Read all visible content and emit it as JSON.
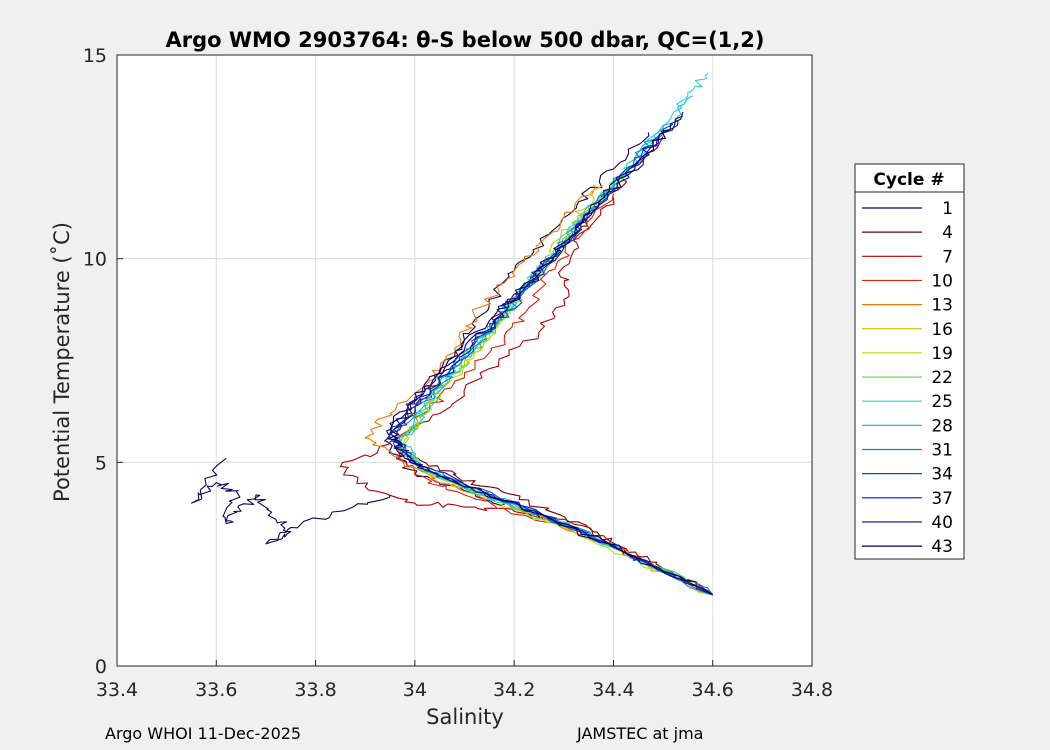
{
  "chart_data": {
    "type": "line",
    "title": "Argo WMO 2903764: θ-S below 500 dbar,  QC=(1,2)",
    "xlabel": "Salinity",
    "ylabel": "Potential Temperature (˚C)",
    "xlim": [
      33.4,
      34.8
    ],
    "ylim": [
      0,
      15
    ],
    "xticks": [
      "33.4",
      "33.6",
      "33.8",
      "34",
      "34.2",
      "34.4",
      "34.6",
      "34.8"
    ],
    "yticks": [
      "0",
      "5",
      "10",
      "15"
    ],
    "grid": true,
    "legend": {
      "title": "Cycle #",
      "placement": "right-outside",
      "entries": [
        {
          "label": "1",
          "color": "#15005a"
        },
        {
          "label": "4",
          "color": "#7a0000"
        },
        {
          "label": "7",
          "color": "#b00000"
        },
        {
          "label": "10",
          "color": "#e02000"
        },
        {
          "label": "13",
          "color": "#f07800"
        },
        {
          "label": "16",
          "color": "#e8c000"
        },
        {
          "label": "19",
          "color": "#b8e000"
        },
        {
          "label": "22",
          "color": "#50e040"
        },
        {
          "label": "25",
          "color": "#20d8c8"
        },
        {
          "label": "28",
          "color": "#10c0e0"
        },
        {
          "label": "31",
          "color": "#0090d0"
        },
        {
          "label": "34",
          "color": "#0050c0"
        },
        {
          "label": "37",
          "color": "#0018c0"
        },
        {
          "label": "40",
          "color": "#100090"
        },
        {
          "label": "43",
          "color": "#000060"
        }
      ]
    },
    "series": [
      {
        "name": "1",
        "points": [
          [
            34.6,
            1.75
          ],
          [
            34.5,
            2.3
          ],
          [
            34.4,
            2.9
          ],
          [
            34.3,
            3.5
          ],
          [
            34.2,
            3.9
          ],
          [
            34.1,
            4.3
          ],
          [
            34.0,
            4.7
          ],
          [
            33.95,
            5.3
          ],
          [
            33.95,
            5.8
          ],
          [
            34.0,
            6.5
          ],
          [
            34.05,
            7.2
          ],
          [
            34.1,
            8.0
          ],
          [
            34.15,
            8.9
          ],
          [
            34.2,
            9.7
          ],
          [
            34.27,
            10.6
          ],
          [
            34.33,
            11.4
          ],
          [
            34.4,
            12.2
          ],
          [
            34.47,
            13.1
          ]
        ]
      },
      {
        "name": "4",
        "points": [
          [
            34.6,
            1.75
          ],
          [
            34.5,
            2.4
          ],
          [
            34.42,
            2.9
          ],
          [
            34.35,
            3.4
          ],
          [
            34.25,
            3.9
          ],
          [
            34.15,
            4.4
          ],
          [
            34.05,
            4.8
          ],
          [
            33.98,
            5.2
          ],
          [
            33.96,
            5.6
          ],
          [
            34.0,
            6.3
          ],
          [
            34.05,
            7.0
          ],
          [
            34.12,
            7.9
          ],
          [
            34.18,
            8.8
          ],
          [
            34.24,
            9.6
          ],
          [
            34.3,
            10.4
          ],
          [
            34.37,
            11.3
          ],
          [
            34.43,
            12.1
          ],
          [
            34.5,
            13.0
          ]
        ]
      },
      {
        "name": "7",
        "points": [
          [
            34.6,
            1.75
          ],
          [
            34.48,
            2.5
          ],
          [
            34.38,
            3.2
          ],
          [
            34.3,
            3.6
          ],
          [
            34.2,
            3.8
          ],
          [
            34.1,
            3.9
          ],
          [
            34.0,
            4.0
          ],
          [
            33.9,
            4.4
          ],
          [
            33.85,
            4.9
          ],
          [
            33.95,
            5.5
          ],
          [
            34.05,
            6.2
          ],
          [
            34.15,
            7.3
          ],
          [
            34.25,
            8.2
          ],
          [
            34.3,
            9.0
          ],
          [
            34.3,
            9.8
          ],
          [
            34.33,
            10.6
          ],
          [
            34.4,
            11.5
          ]
        ]
      },
      {
        "name": "10",
        "points": [
          [
            34.6,
            1.75
          ],
          [
            34.46,
            2.6
          ],
          [
            34.35,
            3.2
          ],
          [
            34.22,
            3.7
          ],
          [
            34.1,
            4.2
          ],
          [
            34.0,
            4.7
          ],
          [
            33.96,
            5.4
          ],
          [
            34.03,
            6.3
          ],
          [
            34.1,
            7.2
          ],
          [
            34.18,
            8.0
          ],
          [
            34.23,
            8.8
          ],
          [
            34.27,
            9.7
          ],
          [
            34.33,
            10.5
          ],
          [
            34.4,
            11.6
          ]
        ]
      },
      {
        "name": "13",
        "points": [
          [
            34.6,
            1.75
          ],
          [
            34.45,
            2.6
          ],
          [
            34.32,
            3.3
          ],
          [
            34.2,
            3.9
          ],
          [
            34.05,
            4.5
          ],
          [
            33.97,
            5.1
          ],
          [
            33.9,
            5.6
          ],
          [
            33.95,
            6.2
          ],
          [
            34.03,
            7.0
          ],
          [
            34.08,
            7.8
          ],
          [
            34.12,
            8.6
          ],
          [
            34.18,
            9.4
          ],
          [
            34.25,
            10.2
          ],
          [
            34.3,
            11.0
          ],
          [
            34.36,
            11.8
          ]
        ]
      },
      {
        "name": "16",
        "points": [
          [
            34.6,
            1.75
          ],
          [
            34.44,
            2.7
          ],
          [
            34.3,
            3.4
          ],
          [
            34.18,
            4.0
          ],
          [
            34.05,
            4.6
          ],
          [
            33.98,
            5.2
          ],
          [
            34.0,
            5.9
          ],
          [
            34.04,
            6.7
          ],
          [
            34.1,
            7.5
          ],
          [
            34.16,
            8.3
          ],
          [
            34.22,
            9.2
          ],
          [
            34.27,
            10.0
          ],
          [
            34.32,
            10.9
          ],
          [
            34.38,
            11.8
          ]
        ]
      },
      {
        "name": "19",
        "points": [
          [
            34.6,
            1.75
          ],
          [
            34.43,
            2.7
          ],
          [
            34.28,
            3.5
          ],
          [
            34.15,
            4.1
          ],
          [
            34.03,
            4.7
          ],
          [
            33.97,
            5.3
          ],
          [
            34.0,
            6.0
          ],
          [
            34.06,
            6.9
          ],
          [
            34.12,
            7.7
          ],
          [
            34.18,
            8.6
          ],
          [
            34.24,
            9.5
          ],
          [
            34.3,
            10.4
          ],
          [
            34.35,
            11.2
          ],
          [
            34.42,
            12.0
          ]
        ]
      },
      {
        "name": "22",
        "points": [
          [
            34.6,
            1.75
          ],
          [
            34.42,
            2.8
          ],
          [
            34.27,
            3.6
          ],
          [
            34.13,
            4.2
          ],
          [
            34.02,
            4.8
          ],
          [
            33.97,
            5.4
          ],
          [
            34.01,
            6.1
          ],
          [
            34.07,
            7.0
          ],
          [
            34.13,
            7.9
          ],
          [
            34.19,
            8.8
          ],
          [
            34.25,
            9.7
          ],
          [
            34.31,
            10.6
          ],
          [
            34.37,
            11.5
          ],
          [
            34.44,
            12.3
          ]
        ]
      },
      {
        "name": "25",
        "points": [
          [
            34.6,
            1.75
          ],
          [
            34.42,
            2.8
          ],
          [
            34.26,
            3.7
          ],
          [
            34.12,
            4.3
          ],
          [
            34.01,
            4.9
          ],
          [
            33.97,
            5.5
          ],
          [
            34.02,
            6.3
          ],
          [
            34.08,
            7.2
          ],
          [
            34.14,
            8.1
          ],
          [
            34.2,
            9.0
          ],
          [
            34.26,
            9.9
          ],
          [
            34.33,
            10.9
          ],
          [
            34.41,
            12.0
          ],
          [
            34.49,
            13.1
          ],
          [
            34.55,
            14.0
          ],
          [
            34.59,
            14.55
          ]
        ]
      },
      {
        "name": "28",
        "points": [
          [
            34.6,
            1.75
          ],
          [
            34.42,
            2.8
          ],
          [
            34.26,
            3.7
          ],
          [
            34.12,
            4.3
          ],
          [
            34.01,
            4.9
          ],
          [
            33.97,
            5.5
          ],
          [
            34.02,
            6.4
          ],
          [
            34.08,
            7.3
          ],
          [
            34.15,
            8.2
          ],
          [
            34.21,
            9.1
          ],
          [
            34.27,
            10.0
          ],
          [
            34.34,
            11.0
          ],
          [
            34.42,
            12.1
          ],
          [
            34.5,
            13.2
          ],
          [
            34.56,
            14.0
          ]
        ]
      },
      {
        "name": "31",
        "points": [
          [
            34.6,
            1.75
          ],
          [
            34.42,
            2.8
          ],
          [
            34.26,
            3.7
          ],
          [
            34.11,
            4.4
          ],
          [
            34.0,
            5.0
          ],
          [
            33.96,
            5.6
          ],
          [
            34.02,
            6.5
          ],
          [
            34.09,
            7.4
          ],
          [
            34.16,
            8.3
          ],
          [
            34.22,
            9.2
          ],
          [
            34.28,
            10.1
          ],
          [
            34.35,
            11.1
          ],
          [
            34.43,
            12.2
          ],
          [
            34.5,
            13.2
          ]
        ]
      },
      {
        "name": "34",
        "points": [
          [
            34.6,
            1.75
          ],
          [
            34.42,
            2.8
          ],
          [
            34.26,
            3.7
          ],
          [
            34.11,
            4.4
          ],
          [
            34.0,
            5.0
          ],
          [
            33.95,
            5.6
          ],
          [
            34.01,
            6.5
          ],
          [
            34.09,
            7.5
          ],
          [
            34.16,
            8.4
          ],
          [
            34.23,
            9.3
          ],
          [
            34.29,
            10.2
          ],
          [
            34.36,
            11.2
          ],
          [
            34.44,
            12.3
          ],
          [
            34.52,
            13.3
          ]
        ]
      },
      {
        "name": "37",
        "points": [
          [
            34.6,
            1.75
          ],
          [
            34.42,
            2.8
          ],
          [
            34.26,
            3.7
          ],
          [
            34.11,
            4.4
          ],
          [
            33.99,
            5.0
          ],
          [
            33.95,
            5.7
          ],
          [
            34.01,
            6.6
          ],
          [
            34.09,
            7.5
          ],
          [
            34.16,
            8.5
          ],
          [
            34.23,
            9.4
          ],
          [
            34.3,
            10.3
          ],
          [
            34.37,
            11.3
          ],
          [
            34.45,
            12.4
          ],
          [
            34.53,
            13.4
          ]
        ]
      },
      {
        "name": "40",
        "points": [
          [
            34.6,
            1.75
          ],
          [
            34.42,
            2.8
          ],
          [
            34.26,
            3.7
          ],
          [
            34.1,
            4.4
          ],
          [
            33.99,
            5.0
          ],
          [
            33.95,
            5.7
          ],
          [
            34.0,
            6.6
          ],
          [
            34.08,
            7.5
          ],
          [
            34.16,
            8.5
          ],
          [
            34.23,
            9.4
          ],
          [
            34.3,
            10.4
          ],
          [
            34.37,
            11.4
          ],
          [
            34.46,
            12.5
          ],
          [
            34.54,
            13.5
          ]
        ]
      },
      {
        "name": "43",
        "points": [
          [
            34.6,
            1.75
          ],
          [
            34.42,
            2.8
          ],
          [
            34.26,
            3.7
          ],
          [
            34.1,
            4.4
          ],
          [
            33.98,
            5.1
          ],
          [
            33.95,
            5.8
          ],
          [
            34.0,
            6.7
          ],
          [
            34.08,
            7.6
          ],
          [
            34.16,
            8.6
          ],
          [
            34.24,
            9.5
          ],
          [
            34.31,
            10.5
          ],
          [
            34.38,
            11.5
          ],
          [
            34.47,
            12.6
          ],
          [
            34.54,
            13.6
          ]
        ]
      },
      {
        "name": "1",
        "points": [
          [
            33.95,
            4.2
          ],
          [
            33.85,
            3.8
          ],
          [
            33.75,
            3.4
          ],
          [
            33.7,
            3.0
          ],
          [
            33.75,
            3.3
          ],
          [
            33.72,
            3.6
          ],
          [
            33.68,
            4.2
          ],
          [
            33.65,
            3.8
          ],
          [
            33.62,
            3.5
          ],
          [
            33.64,
            4.3
          ],
          [
            33.6,
            4.5
          ],
          [
            33.55,
            4.0
          ],
          [
            33.62,
            5.1
          ]
        ]
      }
    ]
  },
  "footer": {
    "left": "Argo WHOI 11-Dec-2025",
    "right": "JAMSTEC at jma"
  }
}
